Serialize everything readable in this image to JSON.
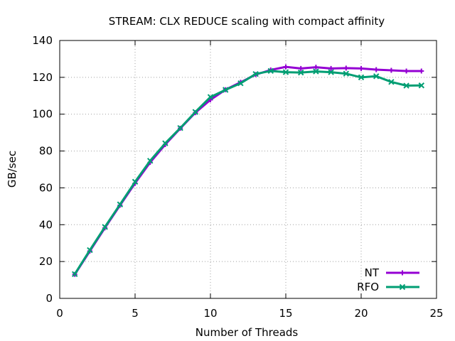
{
  "chart_data": {
    "type": "line",
    "title": "STREAM: CLX REDUCE scaling with compact affinity",
    "xlabel": "Number of Threads",
    "ylabel": "GB/sec",
    "xlim": [
      0,
      25
    ],
    "ylim": [
      0,
      140
    ],
    "xticks": [
      0,
      5,
      10,
      15,
      20,
      25
    ],
    "yticks": [
      0,
      20,
      40,
      60,
      80,
      100,
      120,
      140
    ],
    "grid": true,
    "legend_position": "bottom-right",
    "x": [
      1,
      2,
      3,
      4,
      5,
      6,
      7,
      8,
      9,
      10,
      11,
      12,
      13,
      14,
      15,
      16,
      17,
      18,
      19,
      20,
      21,
      22,
      23,
      24
    ],
    "series": [
      {
        "name": "NT",
        "color": "#9400d3",
        "marker": "plus",
        "values": [
          13,
          25.7,
          38.3,
          50.5,
          62.5,
          73.8,
          83.5,
          92.3,
          100.8,
          107.8,
          113.3,
          117.3,
          121.5,
          124,
          125.7,
          124.8,
          125.5,
          124.8,
          125,
          124.8,
          124.2,
          123.8,
          123.4,
          123.4
        ]
      },
      {
        "name": "RFO",
        "color": "#009e73",
        "marker": "x",
        "values": [
          13.2,
          26.2,
          38.8,
          51,
          63.3,
          74.7,
          84.2,
          92.5,
          101.2,
          109.3,
          113.2,
          116.8,
          121.8,
          123.5,
          122.8,
          122.6,
          123.2,
          122.8,
          122,
          120,
          120.6,
          117.5,
          115.5,
          115.6
        ]
      }
    ]
  }
}
